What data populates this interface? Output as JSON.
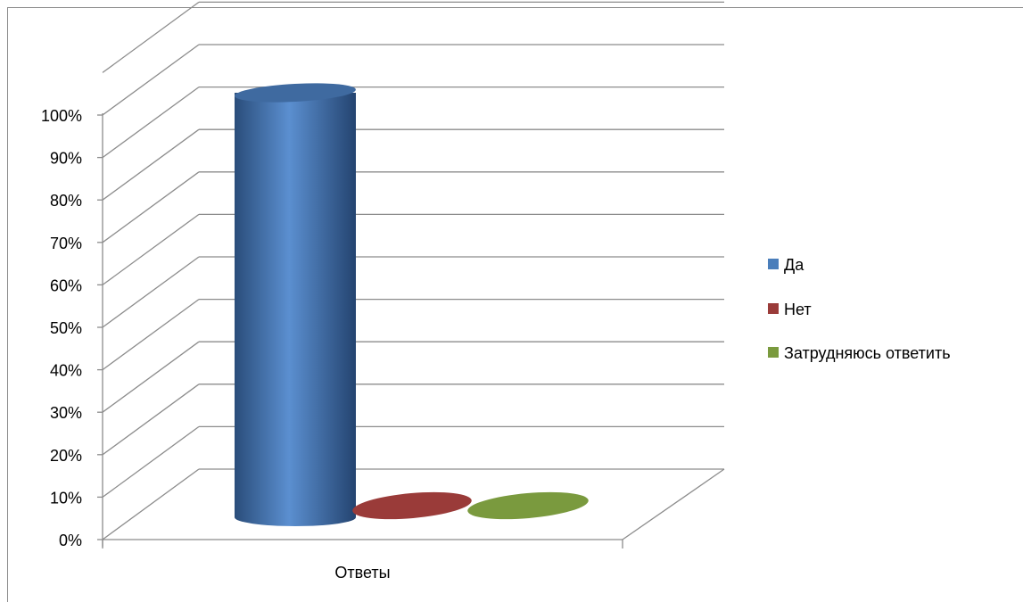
{
  "chart_data": {
    "type": "bar",
    "style": "3d-cylinder",
    "categories": [
      "Ответы"
    ],
    "series": [
      {
        "name": "Да",
        "values": [
          100
        ],
        "color": "#4a7ebb"
      },
      {
        "name": "Нет",
        "values": [
          0
        ],
        "color": "#9a3b39"
      },
      {
        "name": "Затрудняюсь ответить",
        "values": [
          0
        ],
        "color": "#7a9a3e"
      }
    ],
    "y_ticks": [
      "0%",
      "10%",
      "20%",
      "30%",
      "40%",
      "50%",
      "60%",
      "70%",
      "80%",
      "90%",
      "100%"
    ],
    "ylim": [
      0,
      100
    ],
    "y_unit": "%",
    "grid": true,
    "legend_position": "right"
  }
}
